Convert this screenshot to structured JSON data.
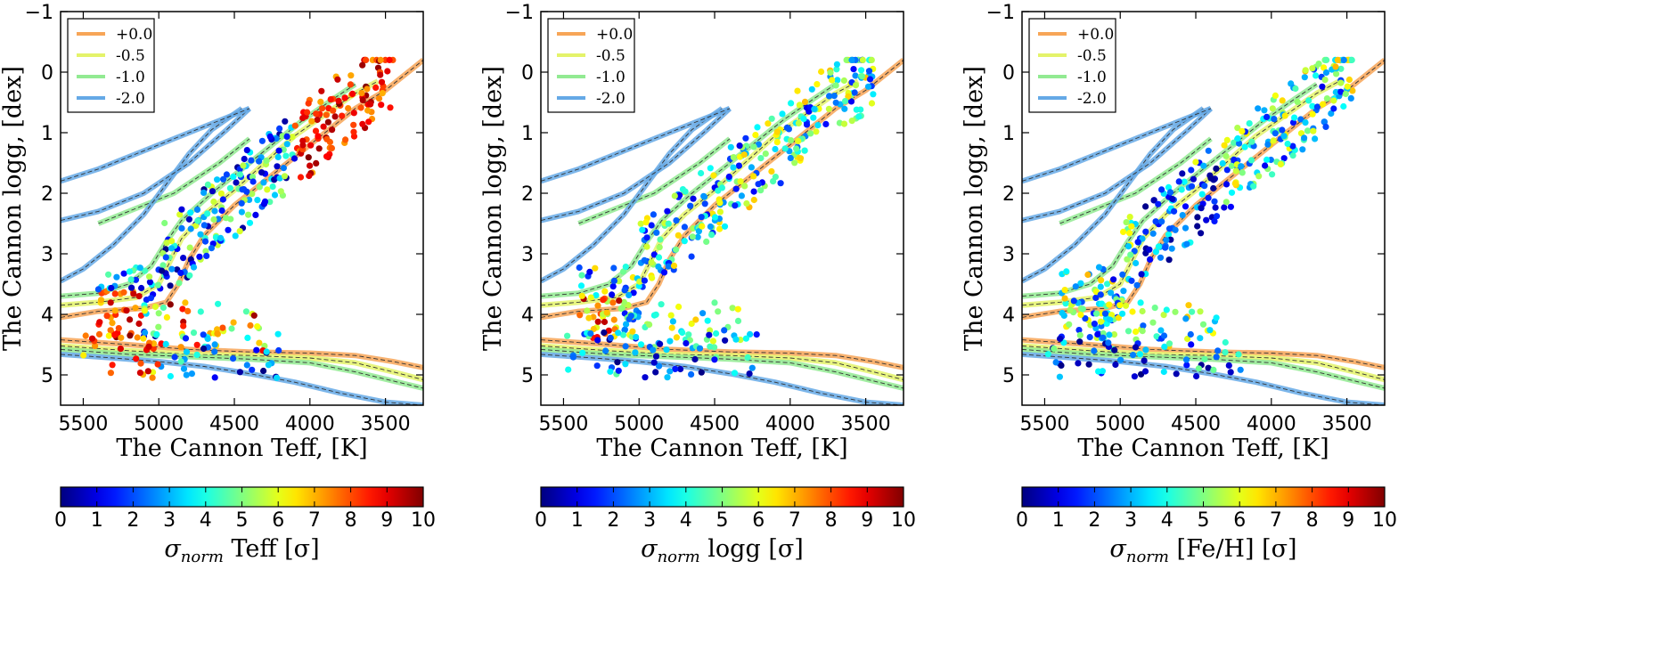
{
  "chart_data": [
    {
      "type": "scatter",
      "xlabel": "The Cannon Teff, [K]",
      "ylabel": "The Cannon logg, [dex]",
      "xlim": [
        5650,
        3250
      ],
      "ylim": [
        5.5,
        -1
      ],
      "xticks": [
        5500,
        5000,
        4500,
        4000,
        3500
      ],
      "yticks": [
        -1,
        0,
        1,
        2,
        3,
        4,
        5
      ],
      "colorbar": {
        "label_sym": "σ",
        "label_sub": "norm",
        "label_rest": " Teff [σ]",
        "min": 0,
        "max": 10,
        "ticks": [
          0,
          1,
          2,
          3,
          4,
          5,
          6,
          7,
          8,
          9,
          10
        ]
      },
      "legend": {
        "placement": "top-left",
        "entries": [
          "+0.0",
          "-0.5",
          "-1.0",
          "-2.0"
        ]
      },
      "seed": 11
    },
    {
      "type": "scatter",
      "xlabel": "The Cannon Teff, [K]",
      "ylabel": "The Cannon logg, [dex]",
      "xlim": [
        5650,
        3250
      ],
      "ylim": [
        5.5,
        -1
      ],
      "xticks": [
        5500,
        5000,
        4500,
        4000,
        3500
      ],
      "yticks": [
        -1,
        0,
        1,
        2,
        3,
        4,
        5
      ],
      "colorbar": {
        "label_sym": "σ",
        "label_sub": "norm",
        "label_rest": " logg [σ]",
        "min": 0,
        "max": 10,
        "ticks": [
          0,
          1,
          2,
          3,
          4,
          5,
          6,
          7,
          8,
          9,
          10
        ]
      },
      "legend": {
        "placement": "top-left",
        "entries": [
          "+0.0",
          "-0.5",
          "-1.0",
          "-2.0"
        ]
      },
      "seed": 23
    },
    {
      "type": "scatter",
      "xlabel": "The Cannon Teff, [K]",
      "ylabel": "The Cannon logg, [dex]",
      "xlim": [
        5650,
        3250
      ],
      "ylim": [
        5.5,
        -1
      ],
      "xticks": [
        5500,
        5000,
        4500,
        4000,
        3500
      ],
      "yticks": [
        -1,
        0,
        1,
        2,
        3,
        4,
        5
      ],
      "colorbar": {
        "label_sym": "σ",
        "label_sub": "norm",
        "label_rest": " [Fe/H] [σ]",
        "min": 0,
        "max": 10,
        "ticks": [
          0,
          1,
          2,
          3,
          4,
          5,
          6,
          7,
          8,
          9,
          10
        ]
      },
      "legend": {
        "placement": "top-left",
        "entries": [
          "+0.0",
          "-0.5",
          "-1.0",
          "-2.0"
        ]
      },
      "seed": 37
    }
  ],
  "isochrones": [
    {
      "name": "+0.0",
      "color": "#f7a557",
      "giant": [
        [
          5650,
          4.05
        ],
        [
          5400,
          3.95
        ],
        [
          5100,
          3.9
        ],
        [
          4950,
          3.8
        ],
        [
          4870,
          3.5
        ],
        [
          4800,
          3.1
        ],
        [
          4700,
          2.7
        ],
        [
          4500,
          2.2
        ],
        [
          4300,
          1.8
        ],
        [
          4100,
          1.4
        ],
        [
          3900,
          1.0
        ],
        [
          3700,
          0.6
        ],
        [
          3500,
          0.3
        ],
        [
          3250,
          -0.2
        ]
      ],
      "dwarf": [
        [
          5650,
          4.42
        ],
        [
          5200,
          4.5
        ],
        [
          4800,
          4.58
        ],
        [
          4400,
          4.62
        ],
        [
          4000,
          4.64
        ],
        [
          3700,
          4.68
        ],
        [
          3450,
          4.78
        ],
        [
          3250,
          4.88
        ]
      ]
    },
    {
      "name": "-0.5",
      "color": "#e4f36a",
      "giant": [
        [
          5650,
          3.85
        ],
        [
          5400,
          3.8
        ],
        [
          5150,
          3.72
        ],
        [
          5000,
          3.5
        ],
        [
          4920,
          3.1
        ],
        [
          4850,
          2.75
        ],
        [
          4700,
          2.35
        ],
        [
          4500,
          1.95
        ],
        [
          4300,
          1.5
        ],
        [
          4100,
          1.05
        ],
        [
          3900,
          0.7
        ],
        [
          3700,
          0.35
        ],
        [
          3550,
          0.15
        ]
      ],
      "dwarf": [
        [
          5650,
          4.52
        ],
        [
          5200,
          4.6
        ],
        [
          4800,
          4.66
        ],
        [
          4400,
          4.68
        ],
        [
          4000,
          4.72
        ],
        [
          3700,
          4.8
        ],
        [
          3450,
          4.95
        ],
        [
          3250,
          5.08
        ]
      ]
    },
    {
      "name": "-1.0",
      "color": "#92ea92",
      "giant": [
        [
          5650,
          3.7
        ],
        [
          5400,
          3.65
        ],
        [
          5200,
          3.5
        ],
        [
          5050,
          3.2
        ],
        [
          4950,
          2.8
        ],
        [
          4850,
          2.45
        ],
        [
          4650,
          2.0
        ],
        [
          4450,
          1.6
        ],
        [
          4250,
          1.2
        ],
        [
          4050,
          0.8
        ],
        [
          3850,
          0.45
        ],
        [
          3700,
          0.2
        ]
      ],
      "giant2": [
        [
          5400,
          2.5
        ],
        [
          5200,
          2.3
        ],
        [
          4900,
          2.0
        ],
        [
          4600,
          1.5
        ],
        [
          4400,
          1.1
        ]
      ],
      "dwarf": [
        [
          5650,
          4.58
        ],
        [
          5200,
          4.66
        ],
        [
          4800,
          4.7
        ],
        [
          4400,
          4.74
        ],
        [
          4000,
          4.8
        ],
        [
          3700,
          4.95
        ],
        [
          3450,
          5.1
        ],
        [
          3250,
          5.22
        ]
      ]
    },
    {
      "name": "-2.0",
      "color": "#65a9e6",
      "giant": [
        [
          5650,
          3.45
        ],
        [
          5500,
          3.25
        ],
        [
          5300,
          2.85
        ],
        [
          5100,
          2.35
        ],
        [
          4950,
          1.85
        ],
        [
          4800,
          1.35
        ],
        [
          4650,
          0.95
        ],
        [
          4450,
          0.6
        ]
      ],
      "giant2": [
        [
          5650,
          2.45
        ],
        [
          5400,
          2.3
        ],
        [
          5100,
          2.0
        ],
        [
          4800,
          1.5
        ],
        [
          4550,
          0.95
        ],
        [
          4400,
          0.6
        ]
      ],
      "giant3": [
        [
          5650,
          1.8
        ],
        [
          5400,
          1.6
        ],
        [
          5100,
          1.3
        ],
        [
          4800,
          1.0
        ],
        [
          4500,
          0.7
        ],
        [
          4400,
          0.6
        ]
      ],
      "dwarf": [
        [
          5650,
          4.66
        ],
        [
          5300,
          4.72
        ],
        [
          5000,
          4.78
        ],
        [
          4700,
          4.86
        ],
        [
          4400,
          4.98
        ],
        [
          4100,
          5.12
        ],
        [
          3800,
          5.3
        ],
        [
          3500,
          5.45
        ],
        [
          3250,
          5.5
        ]
      ]
    }
  ],
  "colors": {
    "axes": "#000000"
  }
}
